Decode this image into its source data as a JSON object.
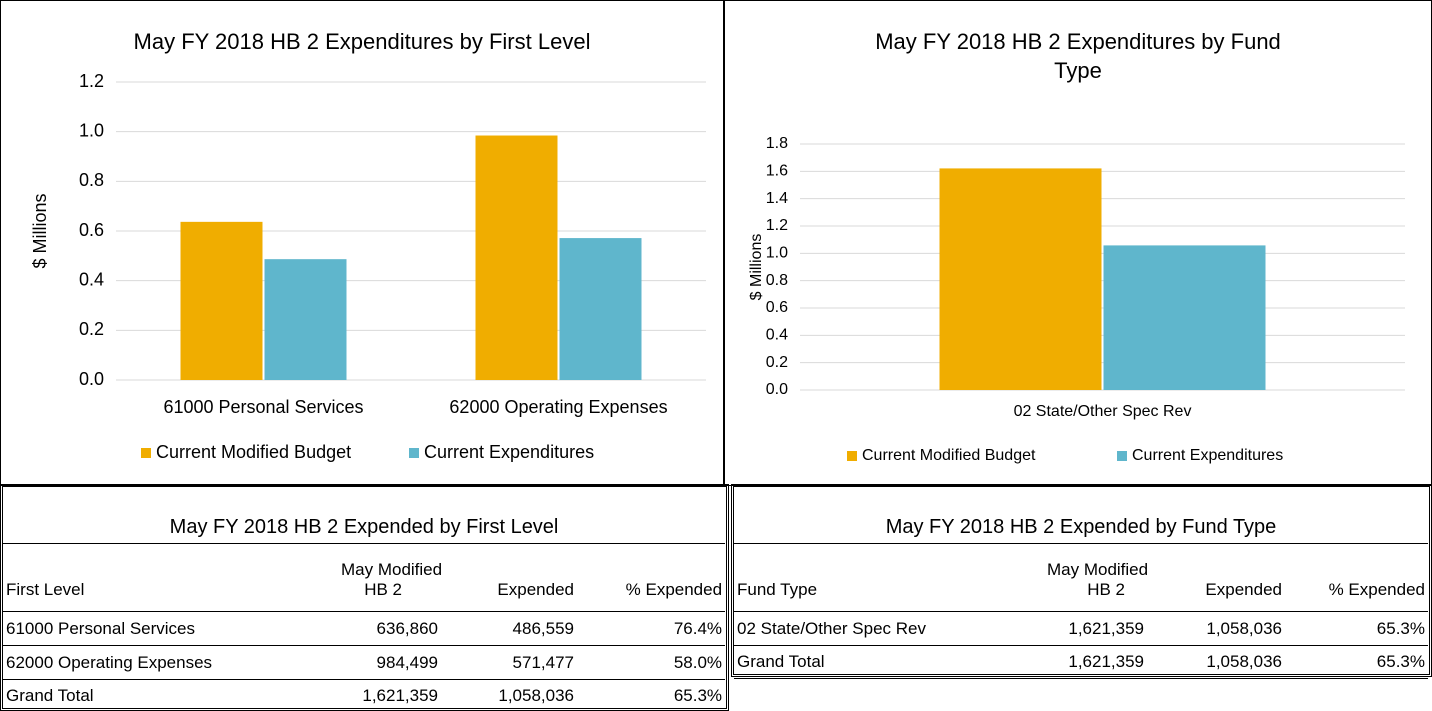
{
  "chart_data": [
    {
      "type": "bar",
      "title": "May FY 2018 HB 2 Expenditures by First Level",
      "y_label": "$ Millions",
      "categories": [
        "61000 Personal Services",
        "62000 Operating Expenses"
      ],
      "series": [
        {
          "name": "Current Modified Budget",
          "color": "#f0ad00",
          "values": [
            0.63686,
            0.984499
          ]
        },
        {
          "name": "Current Expenditures",
          "color": "#5fb6cc",
          "values": [
            0.486559,
            0.571477
          ]
        }
      ],
      "ylim": [
        0,
        1.2
      ],
      "yticks": [
        {
          "value": 0,
          "label": "0.0"
        },
        0.2,
        0.4,
        0.6,
        0.8,
        {
          "value": 1,
          "label": "1.0"
        },
        1.2
      ],
      "grid": true,
      "legend": "bottom"
    },
    {
      "type": "bar",
      "title": "May FY 2018 HB 2 Expenditures by Fund Type",
      "y_label": "$ Millions",
      "categories": [
        "02 State/Other Spec Rev"
      ],
      "series": [
        {
          "name": "Current Modified Budget",
          "color": "#f0ad00",
          "values": [
            1.621359
          ]
        },
        {
          "name": "Current Expenditures",
          "color": "#5fb6cc",
          "values": [
            1.058036
          ]
        }
      ],
      "ylim": [
        0,
        1.8
      ],
      "yticks": [
        {
          "value": 0,
          "label": "0.0"
        },
        0.2,
        0.4,
        0.6,
        0.8,
        {
          "value": 1,
          "label": "1.0"
        },
        1.2,
        1.4,
        1.6,
        1.8
      ],
      "grid": true,
      "legend": "bottom"
    }
  ],
  "tables": [
    {
      "title": "May FY 2018 HB 2 Expended by First Level",
      "column_group": "May Modified",
      "columns": [
        "First Level",
        "HB 2",
        "Expended",
        "% Expended"
      ],
      "rows": [
        [
          "61000 Personal Services",
          "636,860",
          "486,559",
          "76.4%"
        ],
        [
          "62000 Operating Expenses",
          "984,499",
          "571,477",
          "58.0%"
        ],
        [
          "Grand Total",
          "1,621,359",
          "1,058,036",
          "65.3%"
        ]
      ]
    },
    {
      "title": "May FY 2018 HB 2 Expended by Fund Type",
      "column_group": "May Modified",
      "columns": [
        "Fund Type",
        "HB 2",
        "Expended",
        "% Expended"
      ],
      "rows": [
        [
          "02 State/Other Spec Rev",
          "1,621,359",
          "1,058,036",
          "65.3%"
        ],
        [
          "Grand Total",
          "1,621,359",
          "1,058,036",
          "65.3%"
        ]
      ]
    }
  ]
}
